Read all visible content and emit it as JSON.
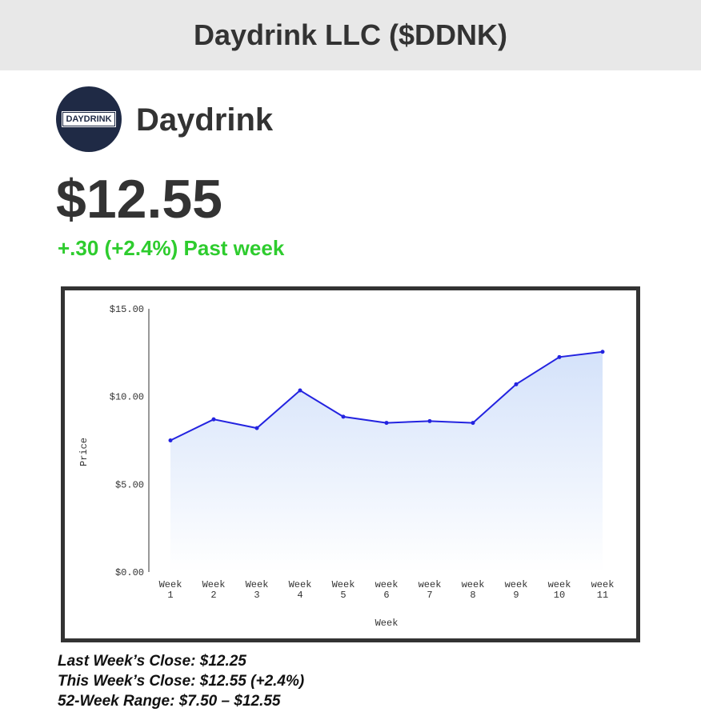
{
  "header": {
    "title": "Daydrink LLC ($DDNK)"
  },
  "company": {
    "logo_text": "DAYDRINK",
    "name": "Daydrink"
  },
  "quote": {
    "price": "$12.55",
    "change": "+.30 (+2.4%) Past week"
  },
  "chart_data": {
    "type": "line",
    "x_label": "Week",
    "y_label": "Price",
    "categories": [
      "Week 1",
      "Week 2",
      "Week 3",
      "Week 4",
      "Week 5",
      "week 6",
      "week 7",
      "week 8",
      "week 9",
      "week 10",
      "week 11"
    ],
    "series": [
      {
        "color": "#2323e0",
        "values": [
          7.5,
          8.7,
          8.2,
          10.35,
          8.85,
          8.5,
          8.6,
          8.5,
          10.7,
          12.25,
          12.55
        ]
      }
    ],
    "ylim": [
      0,
      15
    ],
    "yticks": [
      {
        "value": 0,
        "label": "$0.00"
      },
      {
        "value": 5,
        "label": "$5.00"
      },
      {
        "value": 10,
        "label": "$10.00"
      },
      {
        "value": 15,
        "label": "$15.00"
      }
    ],
    "area_fill": true,
    "grid": false
  },
  "footer": {
    "lines": [
      "Last Week’s Close: $12.25",
      "This Week’s Close: $12.55 (+2.4%)",
      "52-Week Range: $7.50 – $12.55"
    ]
  }
}
